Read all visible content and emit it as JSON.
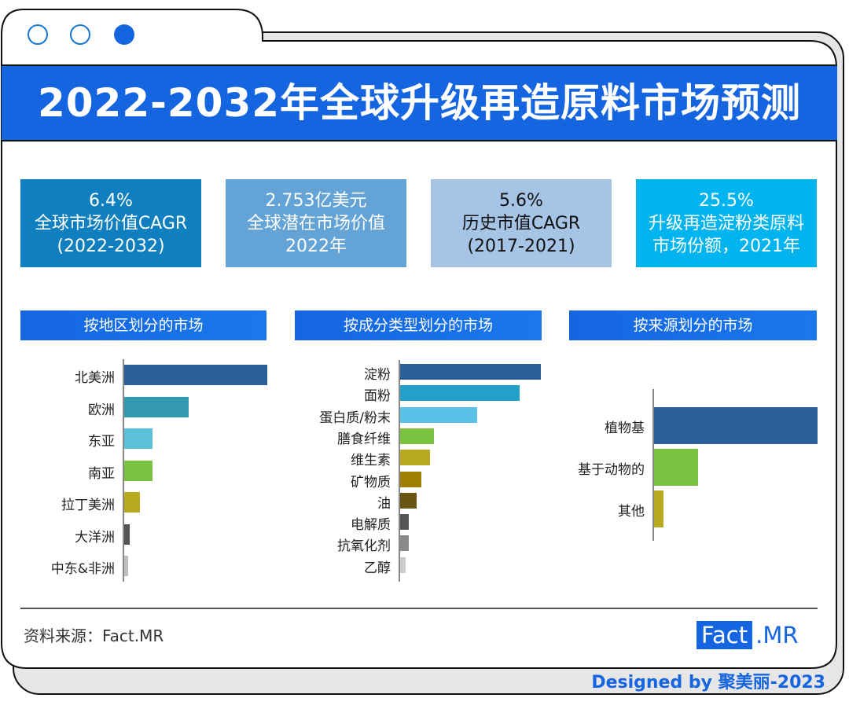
{
  "title": "2022-2032年全球升级再造原料市场预测",
  "stats": [
    {
      "line1": "6.4%",
      "line2": "全球市场价值CAGR",
      "line3": "(2022-2032)",
      "bg": "#0f7fbf",
      "dark": false
    },
    {
      "line1": "2.753亿美元",
      "line2": "全球潜在市场价值",
      "line3": "2022年",
      "bg": "#64a3d6",
      "dark": false
    },
    {
      "line1": "5.6%",
      "line2": "历史市值CAGR",
      "line3": "(2017-2021)",
      "bg": "#a5c4e6",
      "dark": true
    },
    {
      "line1": "25.5%",
      "line2": "升级再造淀粉类原料",
      "line3": "市场份额，2021年",
      "bg": "#00b5ef",
      "dark": false
    }
  ],
  "source_text": "资料来源：Fact.MR",
  "logo": {
    "fact": "Fact",
    "mr": ".MR"
  },
  "designed_by": "Designed by 聚美丽-2023",
  "colors": {
    "primary": "#1565e0"
  },
  "chart_data": [
    {
      "type": "bar",
      "orientation": "horizontal",
      "title": "按地区划分的市场",
      "categories": [
        "北美洲",
        "欧洲",
        "东亚",
        "南亚",
        "拉丁美洲",
        "大洋洲",
        "中东&非洲"
      ],
      "values": [
        100,
        45,
        20,
        20,
        11,
        4,
        3
      ],
      "colors": [
        "#2b5f9a",
        "#3399b0",
        "#5bc0d9",
        "#7cc241",
        "#b8a91f",
        "#555555",
        "#bfbfbf"
      ]
    },
    {
      "type": "bar",
      "orientation": "horizontal",
      "title": "按成分类型划分的市场",
      "categories": [
        "淀粉",
        "面粉",
        "蛋白质/粉末",
        "膳食纤维",
        "维生素",
        "矿物质",
        "油",
        "电解质",
        "抗氧化剂",
        "乙醇"
      ],
      "values": [
        100,
        85,
        55,
        24,
        21,
        15,
        12,
        6,
        6,
        4
      ],
      "colors": [
        "#2b5f9a",
        "#22a0c8",
        "#5bc0e6",
        "#7cc241",
        "#b8a91f",
        "#a07f00",
        "#6b5514",
        "#555555",
        "#8a8a8a",
        "#cccccc"
      ]
    },
    {
      "type": "bar",
      "orientation": "horizontal",
      "title": "按来源划分的市场",
      "categories": [
        "植物基",
        "基于动物的",
        "其他"
      ],
      "values": [
        100,
        27,
        6
      ],
      "colors": [
        "#2b5f9a",
        "#7cc241",
        "#b8a91f"
      ]
    }
  ]
}
